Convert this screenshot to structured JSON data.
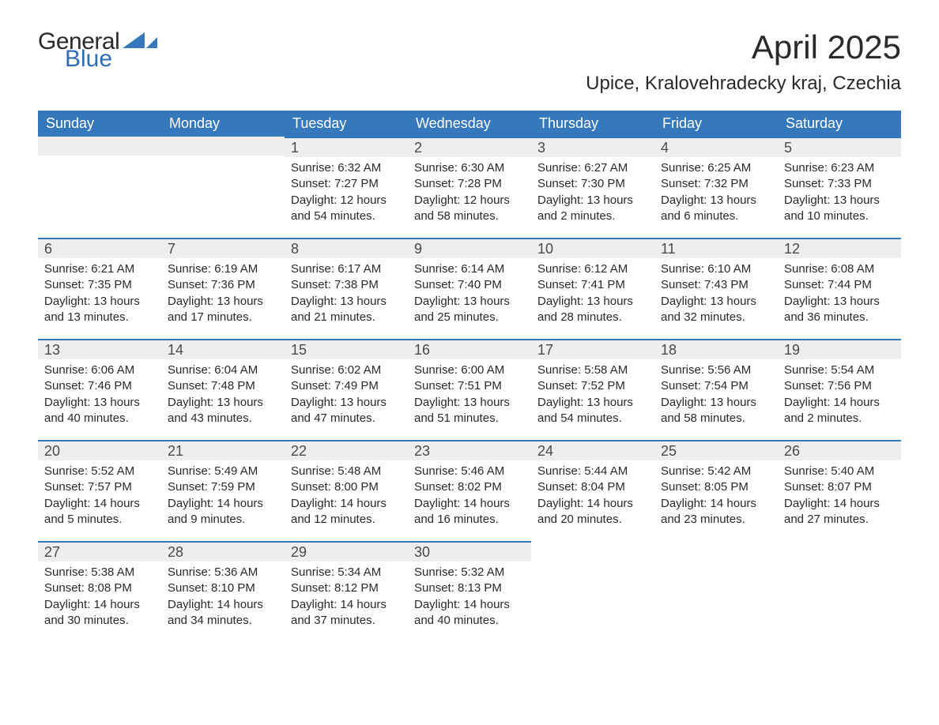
{
  "logo": {
    "general": "General",
    "blue": "Blue"
  },
  "title": "April 2025",
  "location": "Upice, Kralovehradecky kraj, Czechia",
  "colors": {
    "header_bg": "#3678bc",
    "header_text": "#ffffff",
    "daynum_bg": "#eeeeee",
    "daynum_border": "#3678bc",
    "text": "#2a2a2a",
    "logo_blue": "#2f6eb5"
  },
  "weekdays": [
    "Sunday",
    "Monday",
    "Tuesday",
    "Wednesday",
    "Thursday",
    "Friday",
    "Saturday"
  ],
  "label_sunrise": "Sunrise: ",
  "label_sunset": "Sunset: ",
  "label_daylight_prefix": "Daylight: ",
  "weeks": [
    [
      null,
      null,
      {
        "n": "1",
        "sunrise": "6:32 AM",
        "sunset": "7:27 PM",
        "daylight": "12 hours and 54 minutes."
      },
      {
        "n": "2",
        "sunrise": "6:30 AM",
        "sunset": "7:28 PM",
        "daylight": "12 hours and 58 minutes."
      },
      {
        "n": "3",
        "sunrise": "6:27 AM",
        "sunset": "7:30 PM",
        "daylight": "13 hours and 2 minutes."
      },
      {
        "n": "4",
        "sunrise": "6:25 AM",
        "sunset": "7:32 PM",
        "daylight": "13 hours and 6 minutes."
      },
      {
        "n": "5",
        "sunrise": "6:23 AM",
        "sunset": "7:33 PM",
        "daylight": "13 hours and 10 minutes."
      }
    ],
    [
      {
        "n": "6",
        "sunrise": "6:21 AM",
        "sunset": "7:35 PM",
        "daylight": "13 hours and 13 minutes."
      },
      {
        "n": "7",
        "sunrise": "6:19 AM",
        "sunset": "7:36 PM",
        "daylight": "13 hours and 17 minutes."
      },
      {
        "n": "8",
        "sunrise": "6:17 AM",
        "sunset": "7:38 PM",
        "daylight": "13 hours and 21 minutes."
      },
      {
        "n": "9",
        "sunrise": "6:14 AM",
        "sunset": "7:40 PM",
        "daylight": "13 hours and 25 minutes."
      },
      {
        "n": "10",
        "sunrise": "6:12 AM",
        "sunset": "7:41 PM",
        "daylight": "13 hours and 28 minutes."
      },
      {
        "n": "11",
        "sunrise": "6:10 AM",
        "sunset": "7:43 PM",
        "daylight": "13 hours and 32 minutes."
      },
      {
        "n": "12",
        "sunrise": "6:08 AM",
        "sunset": "7:44 PM",
        "daylight": "13 hours and 36 minutes."
      }
    ],
    [
      {
        "n": "13",
        "sunrise": "6:06 AM",
        "sunset": "7:46 PM",
        "daylight": "13 hours and 40 minutes."
      },
      {
        "n": "14",
        "sunrise": "6:04 AM",
        "sunset": "7:48 PM",
        "daylight": "13 hours and 43 minutes."
      },
      {
        "n": "15",
        "sunrise": "6:02 AM",
        "sunset": "7:49 PM",
        "daylight": "13 hours and 47 minutes."
      },
      {
        "n": "16",
        "sunrise": "6:00 AM",
        "sunset": "7:51 PM",
        "daylight": "13 hours and 51 minutes."
      },
      {
        "n": "17",
        "sunrise": "5:58 AM",
        "sunset": "7:52 PM",
        "daylight": "13 hours and 54 minutes."
      },
      {
        "n": "18",
        "sunrise": "5:56 AM",
        "sunset": "7:54 PM",
        "daylight": "13 hours and 58 minutes."
      },
      {
        "n": "19",
        "sunrise": "5:54 AM",
        "sunset": "7:56 PM",
        "daylight": "14 hours and 2 minutes."
      }
    ],
    [
      {
        "n": "20",
        "sunrise": "5:52 AM",
        "sunset": "7:57 PM",
        "daylight": "14 hours and 5 minutes."
      },
      {
        "n": "21",
        "sunrise": "5:49 AM",
        "sunset": "7:59 PM",
        "daylight": "14 hours and 9 minutes."
      },
      {
        "n": "22",
        "sunrise": "5:48 AM",
        "sunset": "8:00 PM",
        "daylight": "14 hours and 12 minutes."
      },
      {
        "n": "23",
        "sunrise": "5:46 AM",
        "sunset": "8:02 PM",
        "daylight": "14 hours and 16 minutes."
      },
      {
        "n": "24",
        "sunrise": "5:44 AM",
        "sunset": "8:04 PM",
        "daylight": "14 hours and 20 minutes."
      },
      {
        "n": "25",
        "sunrise": "5:42 AM",
        "sunset": "8:05 PM",
        "daylight": "14 hours and 23 minutes."
      },
      {
        "n": "26",
        "sunrise": "5:40 AM",
        "sunset": "8:07 PM",
        "daylight": "14 hours and 27 minutes."
      }
    ],
    [
      {
        "n": "27",
        "sunrise": "5:38 AM",
        "sunset": "8:08 PM",
        "daylight": "14 hours and 30 minutes."
      },
      {
        "n": "28",
        "sunrise": "5:36 AM",
        "sunset": "8:10 PM",
        "daylight": "14 hours and 34 minutes."
      },
      {
        "n": "29",
        "sunrise": "5:34 AM",
        "sunset": "8:12 PM",
        "daylight": "14 hours and 37 minutes."
      },
      {
        "n": "30",
        "sunrise": "5:32 AM",
        "sunset": "8:13 PM",
        "daylight": "14 hours and 40 minutes."
      },
      null,
      null,
      null
    ]
  ]
}
